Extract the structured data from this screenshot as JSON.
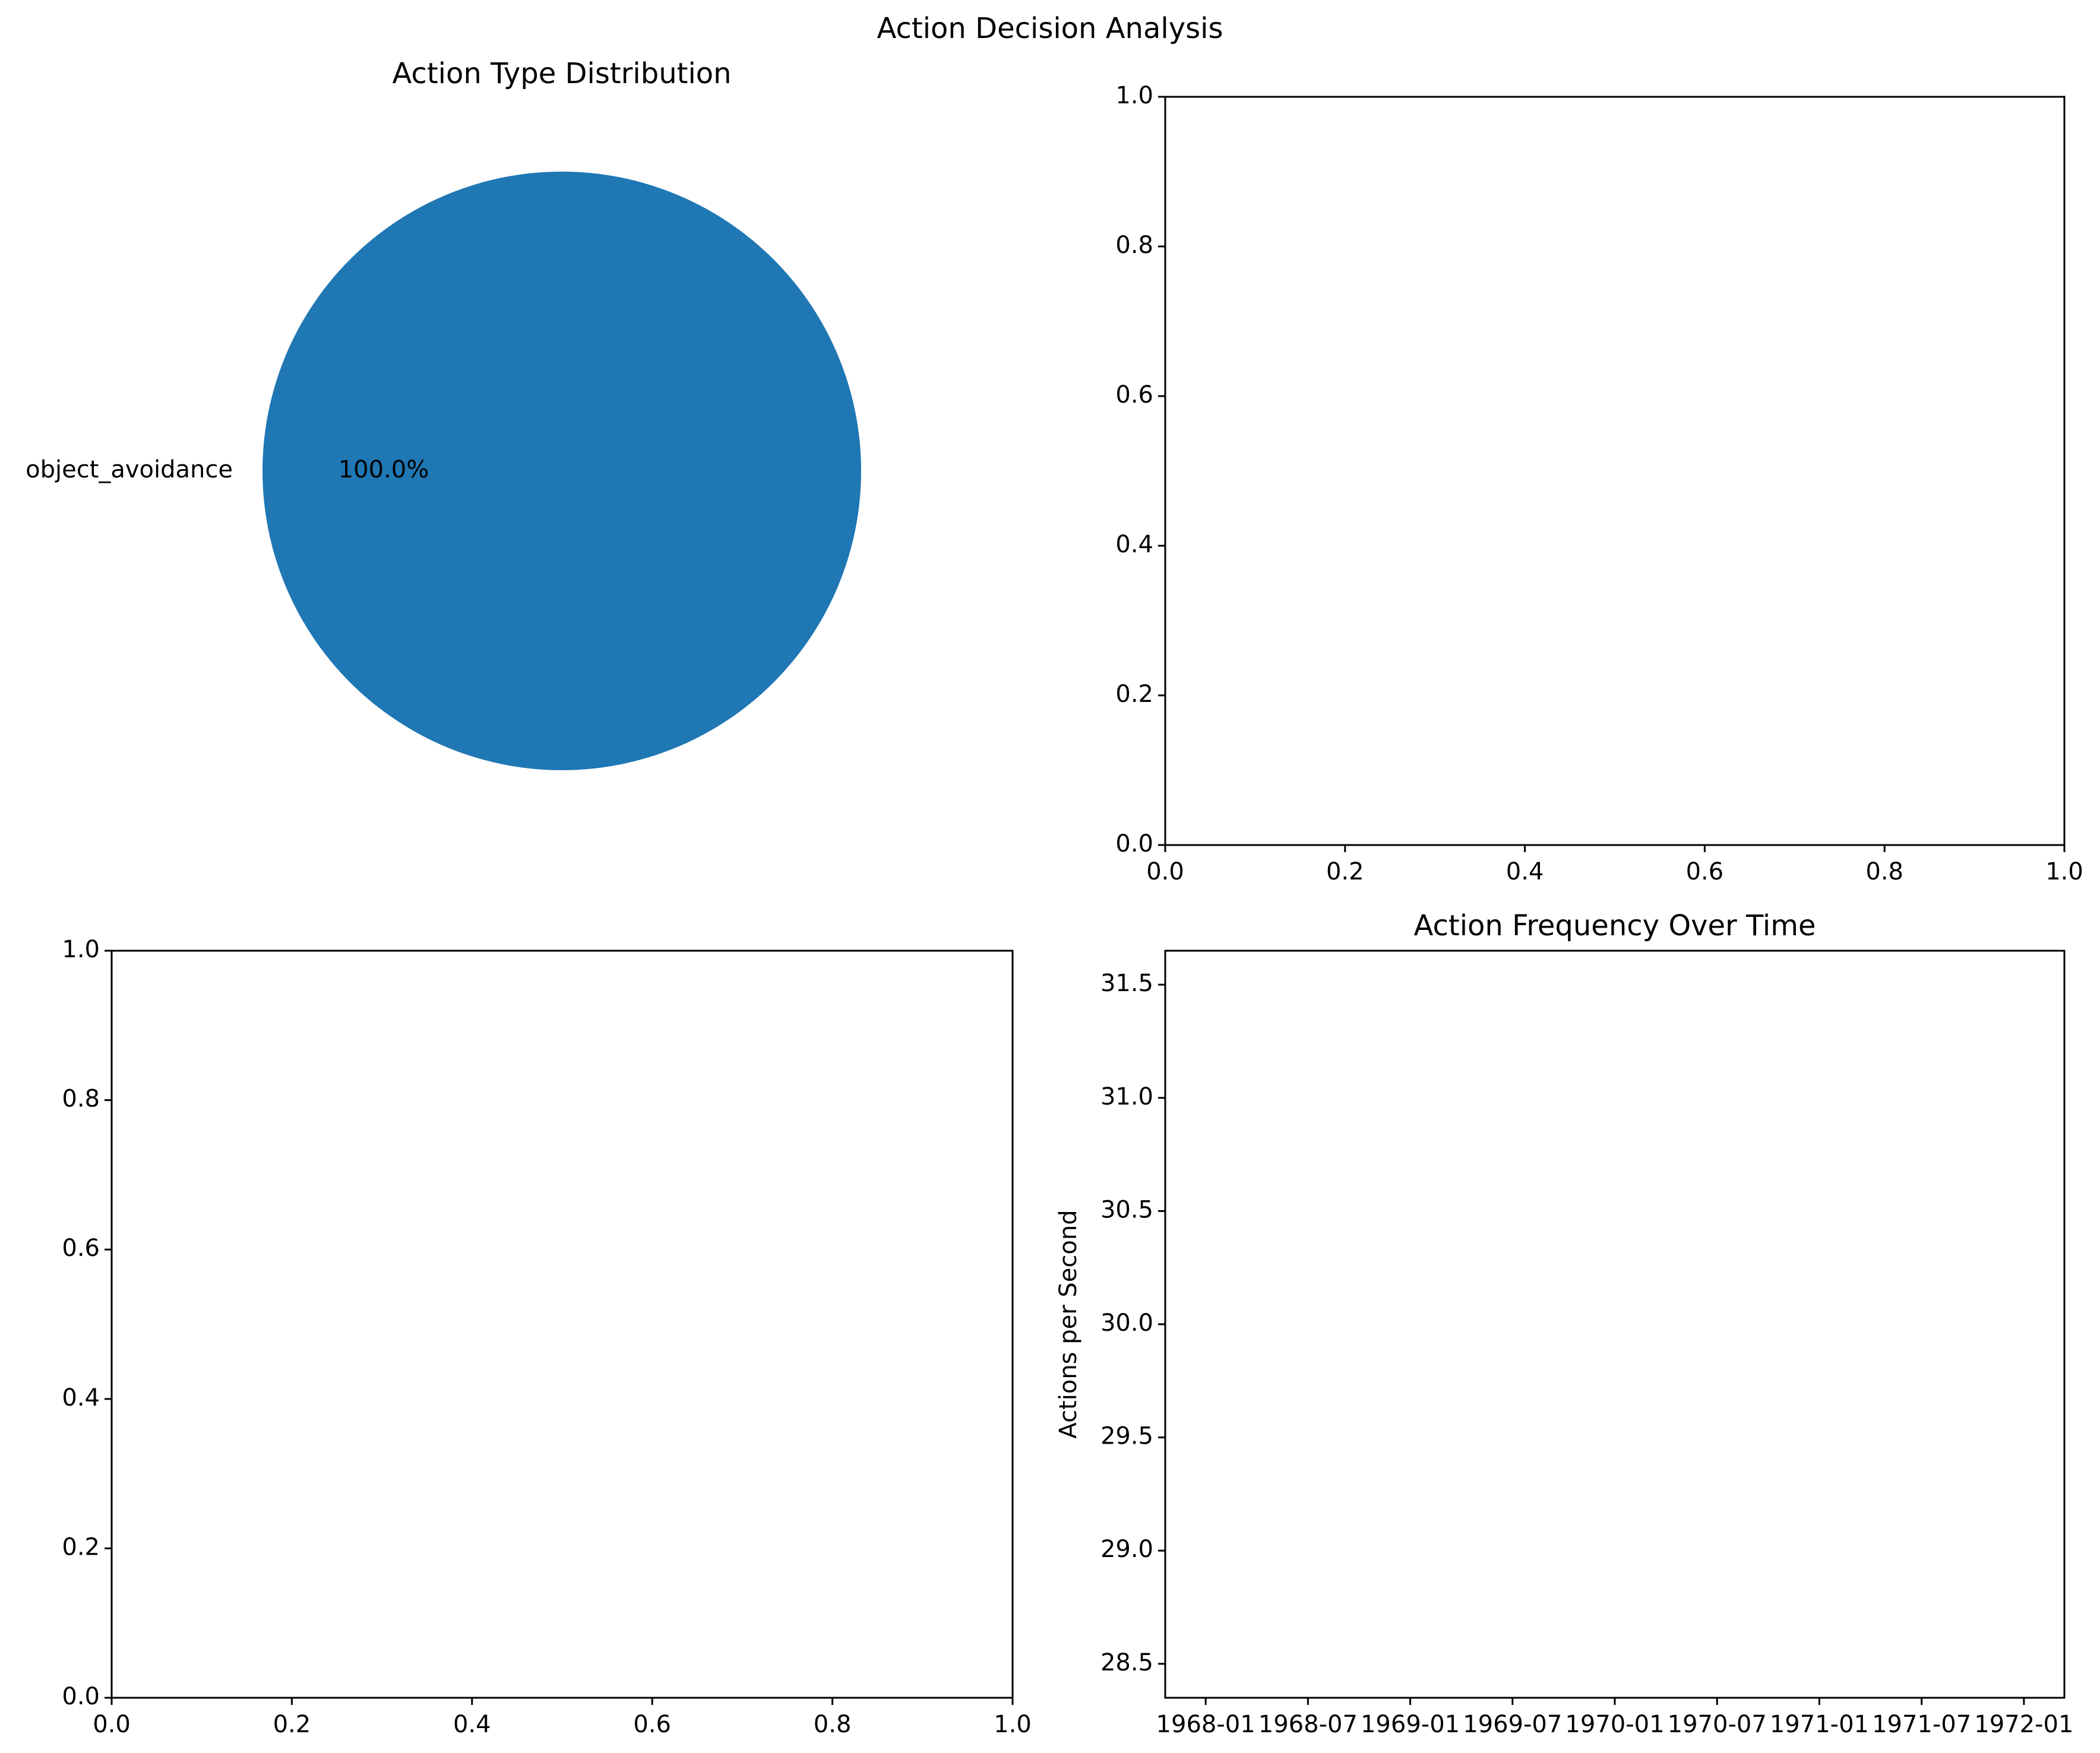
{
  "figure": {
    "suptitle": "Action Decision Analysis"
  },
  "chart_data": [
    {
      "type": "pie",
      "title": "Action Type Distribution",
      "labels": [
        "object_avoidance"
      ],
      "values": [
        100.0
      ],
      "autopct": [
        "100.0%"
      ],
      "colors": [
        "#1f77b4"
      ]
    },
    {
      "type": "line",
      "title": "",
      "xlabel": "",
      "ylabel": "",
      "xlim": [
        0.0,
        1.0
      ],
      "ylim": [
        0.0,
        1.0
      ],
      "xticks": [
        "0.0",
        "0.2",
        "0.4",
        "0.6",
        "0.8",
        "1.0"
      ],
      "yticks": [
        "0.0",
        "0.2",
        "0.4",
        "0.6",
        "0.8",
        "1.0"
      ],
      "series": []
    },
    {
      "type": "line",
      "title": "",
      "xlabel": "",
      "ylabel": "",
      "xlim": [
        0.0,
        1.0
      ],
      "ylim": [
        0.0,
        1.0
      ],
      "xticks": [
        "0.0",
        "0.2",
        "0.4",
        "0.6",
        "0.8",
        "1.0"
      ],
      "yticks": [
        "0.0",
        "0.2",
        "0.4",
        "0.6",
        "0.8",
        "1.0"
      ],
      "series": []
    },
    {
      "type": "line",
      "title": "Action Frequency Over Time",
      "xlabel": "",
      "ylabel": "Actions per Second",
      "ylim": [
        28.35,
        31.65
      ],
      "xticks": [
        "1968-01",
        "1968-07",
        "1969-01",
        "1969-07",
        "1970-01",
        "1970-07",
        "1971-01",
        "1971-07",
        "1972-01"
      ],
      "yticks": [
        "28.5",
        "29.0",
        "29.5",
        "30.0",
        "30.5",
        "31.0",
        "31.5"
      ],
      "series": []
    }
  ]
}
